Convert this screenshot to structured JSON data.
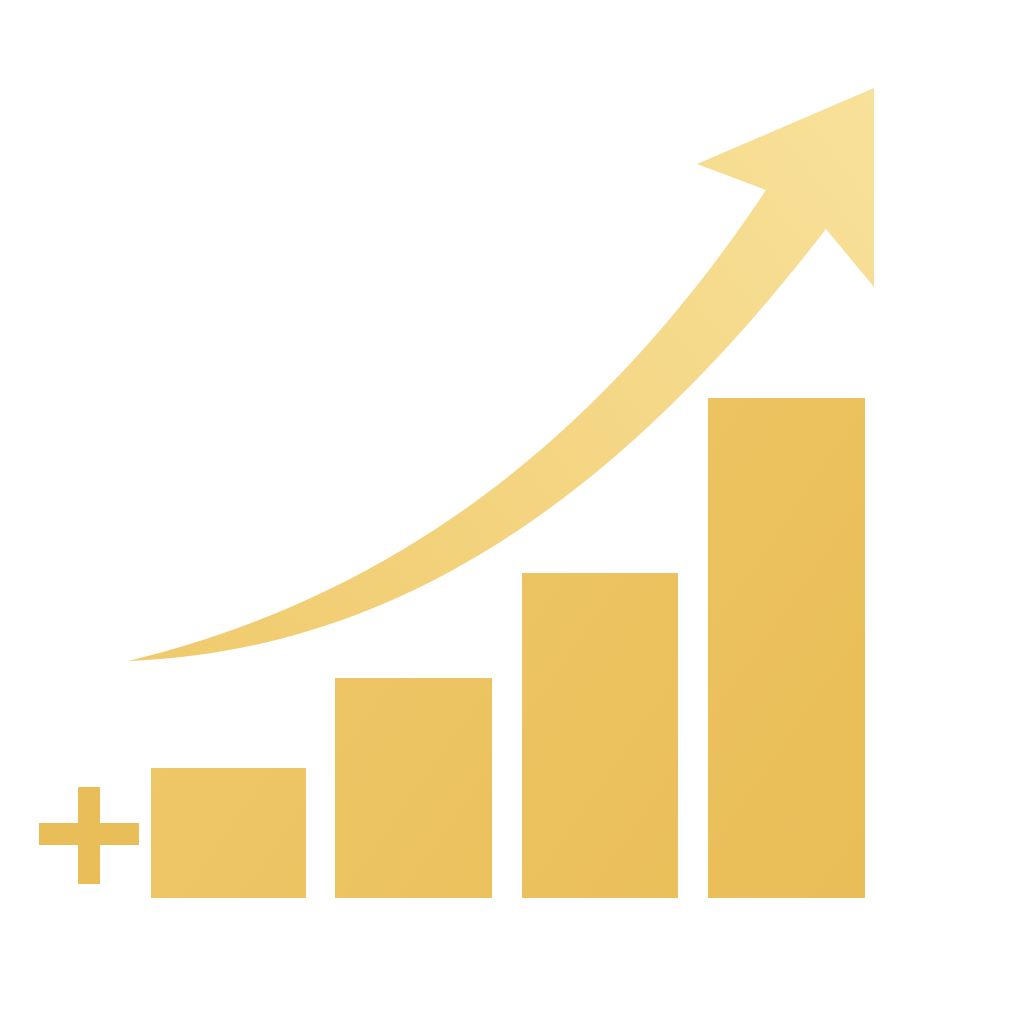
{
  "icon": {
    "name": "growth-bar-chart-icon",
    "colors": {
      "background": "#ffffff",
      "gold_light": "#f8e19a",
      "gold_mid": "#f0ca6c",
      "gold_dark": "#e9bd57"
    },
    "bars": [
      {
        "level": 0.26
      },
      {
        "level": 0.44
      },
      {
        "level": 0.65
      },
      {
        "level": 1.0
      }
    ],
    "plus_symbol": "plus-icon",
    "trend_arrow": "up-trend-arrow-icon"
  }
}
